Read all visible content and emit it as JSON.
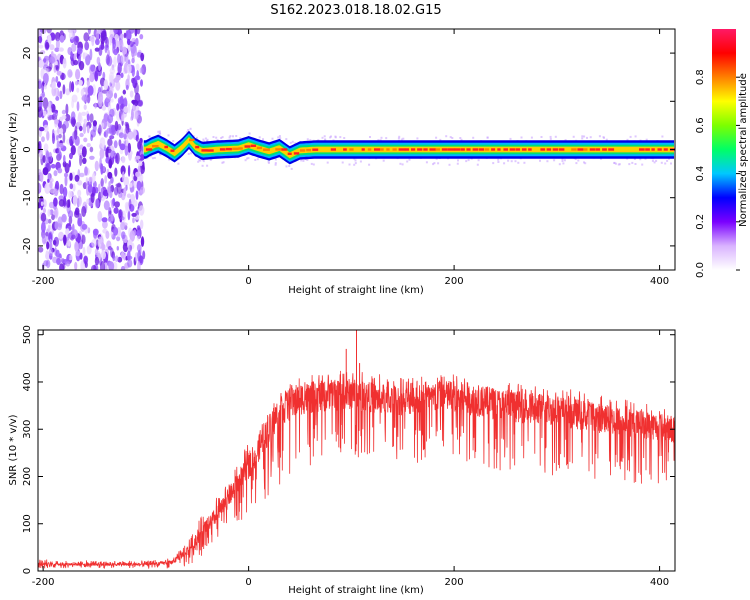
{
  "figure_title": "S162.2023.018.18.02.G15",
  "chart_data": [
    {
      "type": "heatmap",
      "title": "",
      "xlabel": "Height of straight line (km)",
      "ylabel": "Frequency (Hz)",
      "xlim": [
        -205,
        415
      ],
      "ylim": [
        -25,
        25
      ],
      "xticks": [
        -200,
        0,
        200,
        400
      ],
      "yticks": [
        -20,
        -10,
        0,
        10,
        20
      ],
      "grid": false,
      "colorbar": {
        "label": "Normalized spectral amplitude",
        "range": [
          0,
          1
        ],
        "ticks": [
          0.0,
          0.2,
          0.4,
          0.6,
          0.8
        ],
        "stops": [
          "#ffffff",
          "#d9b3ff",
          "#7a00ff",
          "#0000ff",
          "#00c8ff",
          "#00ff66",
          "#7dff00",
          "#ffff00",
          "#ff8000",
          "#ff0000",
          "#ff1a66"
        ]
      },
      "regions": [
        {
          "name": "noise",
          "x": [
            -205,
            -102
          ],
          "y": [
            -25,
            25
          ],
          "amplitude": 0.25
        },
        {
          "name": "carrier",
          "x": [
            -102,
            415
          ],
          "y_center": 0,
          "halfwidth_hz": 1.5,
          "amplitude": 0.9
        }
      ],
      "carrier_track": [
        {
          "x": -100,
          "y": 0.0
        },
        {
          "x": -95,
          "y": 0.6
        },
        {
          "x": -88,
          "y": 1.2
        },
        {
          "x": -80,
          "y": 0.3
        },
        {
          "x": -72,
          "y": -0.8
        },
        {
          "x": -65,
          "y": 0.4
        },
        {
          "x": -58,
          "y": 2.0
        },
        {
          "x": -52,
          "y": 0.5
        },
        {
          "x": -45,
          "y": -0.3
        },
        {
          "x": -30,
          "y": 0.0
        },
        {
          "x": -10,
          "y": 0.2
        },
        {
          "x": 0,
          "y": 0.9
        },
        {
          "x": 10,
          "y": 0.2
        },
        {
          "x": 20,
          "y": -0.4
        },
        {
          "x": 30,
          "y": 0.3
        },
        {
          "x": 40,
          "y": -1.2
        },
        {
          "x": 50,
          "y": -0.2
        },
        {
          "x": 65,
          "y": 0.0
        },
        {
          "x": 415,
          "y": 0.0
        }
      ]
    },
    {
      "type": "line",
      "title": "",
      "xlabel": "Height of straight line (km)",
      "ylabel": "SNR (10 * v/v)",
      "xlim": [
        -205,
        415
      ],
      "ylim": [
        0,
        510
      ],
      "xticks": [
        -200,
        0,
        200,
        400
      ],
      "yticks": [
        0,
        100,
        200,
        300,
        400,
        500
      ],
      "grid": false,
      "series": [
        {
          "color": "#f03030",
          "envelope": {
            "x": [
              -205,
              -150,
              -100,
              -75,
              -60,
              -45,
              -30,
              -15,
              0,
              15,
              30,
              50,
              75,
              100,
              125,
              150,
              200,
              250,
              300,
              350,
              400,
              415
            ],
            "upper": [
              25,
              22,
              22,
              28,
              60,
              120,
              160,
              220,
              270,
              320,
              380,
              410,
              420,
              430,
              420,
              410,
              420,
              400,
              390,
              370,
              350,
              350
            ],
            "lower": [
              5,
              5,
              5,
              5,
              10,
              30,
              60,
              90,
              120,
              150,
              180,
              210,
              230,
              240,
              235,
              230,
              220,
              210,
              200,
              190,
              180,
              180
            ],
            "mean": [
              15,
              14,
              14,
              18,
              40,
              85,
              120,
              170,
              220,
              280,
              340,
              365,
              370,
              375,
              365,
              360,
              370,
              350,
              340,
              320,
              305,
              300
            ]
          },
          "spikes": [
            {
              "x": 95,
              "y": 470
            },
            {
              "x": 105,
              "y": 510
            },
            {
              "x": 108,
              "y": 440
            }
          ]
        }
      ]
    }
  ]
}
